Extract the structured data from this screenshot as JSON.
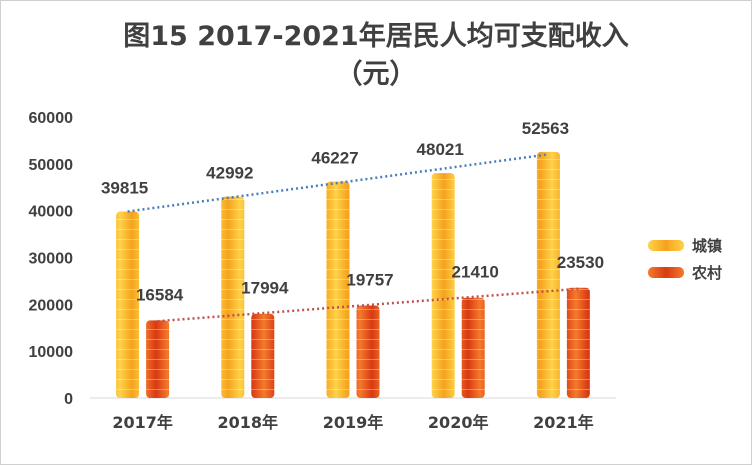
{
  "chart_data": {
    "type": "bar",
    "title_line1": "图15    2017-2021年居民人均可支配收入",
    "title_line2": "（元）",
    "categories": [
      "2017年",
      "2018年",
      "2019年",
      "2020年",
      "2021年"
    ],
    "ylim": [
      0,
      60000
    ],
    "yticks": [
      0,
      10000,
      20000,
      30000,
      40000,
      50000,
      60000
    ],
    "grid": false,
    "legend_position": "right",
    "series": [
      {
        "name": "城镇",
        "values": [
          39815,
          42992,
          46227,
          48021,
          52563
        ],
        "color_top": "#FFD24A",
        "color_bottom": "#F5A21E",
        "trend_color": "#4A7EBB"
      },
      {
        "name": "农村",
        "values": [
          16584,
          17994,
          19757,
          21410,
          23530
        ],
        "color_top": "#F47A2C",
        "color_bottom": "#D93A12",
        "trend_color": "#C0504D"
      }
    ],
    "trendline": "linear, dotted"
  }
}
